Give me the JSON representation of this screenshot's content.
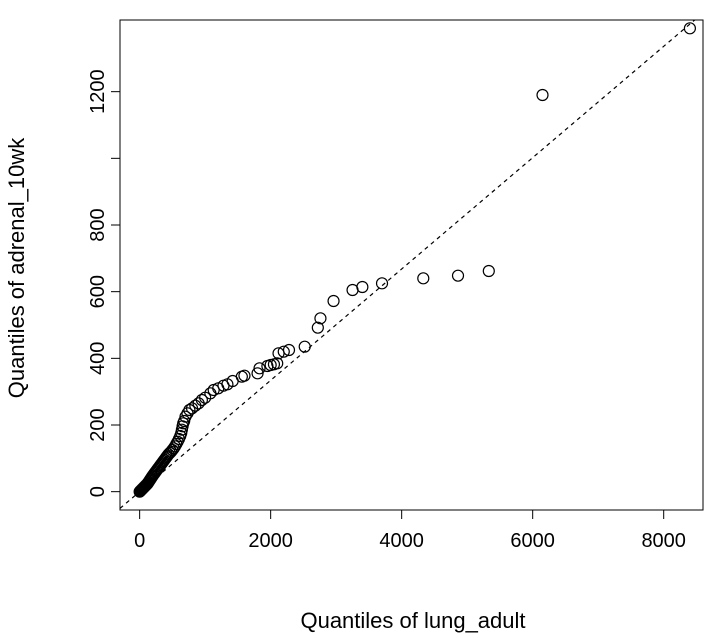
{
  "chart_data": {
    "type": "scatter",
    "xlabel": "Quantiles of lung_adult",
    "ylabel": "Quantiles of adrenal_10wk",
    "xlim": [
      -300,
      8600
    ],
    "ylim": [
      -55,
      1415
    ],
    "x_ticks": [
      0,
      2000,
      4000,
      6000,
      8000
    ],
    "x_tick_labels": [
      "0",
      "2000",
      "4000",
      "6000",
      "8000"
    ],
    "y_ticks": [
      0,
      200,
      400,
      600,
      800,
      1000,
      1200
    ],
    "y_tick_labels": [
      "0",
      "200",
      "400",
      "600",
      "800",
      "",
      "1200"
    ],
    "reference_line": {
      "style": "dashed",
      "slope": 0.167,
      "intercept": 0
    },
    "grid": false,
    "marker": "open-circle",
    "points": [
      [
        0,
        0
      ],
      [
        10,
        2
      ],
      [
        20,
        4
      ],
      [
        30,
        6
      ],
      [
        40,
        8
      ],
      [
        50,
        10
      ],
      [
        60,
        12
      ],
      [
        70,
        14
      ],
      [
        80,
        16
      ],
      [
        90,
        18
      ],
      [
        100,
        20
      ],
      [
        110,
        22
      ],
      [
        120,
        24
      ],
      [
        130,
        27
      ],
      [
        140,
        30
      ],
      [
        150,
        33
      ],
      [
        160,
        36
      ],
      [
        170,
        39
      ],
      [
        180,
        42
      ],
      [
        190,
        45
      ],
      [
        200,
        48
      ],
      [
        215,
        52
      ],
      [
        230,
        56
      ],
      [
        245,
        60
      ],
      [
        260,
        64
      ],
      [
        275,
        68
      ],
      [
        290,
        72
      ],
      [
        305,
        76
      ],
      [
        320,
        80
      ],
      [
        335,
        84
      ],
      [
        350,
        88
      ],
      [
        365,
        92
      ],
      [
        380,
        96
      ],
      [
        395,
        100
      ],
      [
        410,
        104
      ],
      [
        425,
        108
      ],
      [
        440,
        112
      ],
      [
        460,
        116
      ],
      [
        480,
        120
      ],
      [
        500,
        125
      ],
      [
        520,
        130
      ],
      [
        540,
        136
      ],
      [
        560,
        143
      ],
      [
        580,
        150
      ],
      [
        600,
        158
      ],
      [
        620,
        167
      ],
      [
        635,
        176
      ],
      [
        645,
        186
      ],
      [
        655,
        196
      ],
      [
        665,
        205
      ],
      [
        680,
        212
      ],
      [
        700,
        225
      ],
      [
        730,
        235
      ],
      [
        760,
        245
      ],
      [
        800,
        250
      ],
      [
        850,
        258
      ],
      [
        900,
        265
      ],
      [
        950,
        275
      ],
      [
        1000,
        282
      ],
      [
        1080,
        295
      ],
      [
        1130,
        305
      ],
      [
        1200,
        310
      ],
      [
        1280,
        318
      ],
      [
        1340,
        322
      ],
      [
        1420,
        332
      ],
      [
        1560,
        345
      ],
      [
        1600,
        348
      ],
      [
        1800,
        355
      ],
      [
        1830,
        370
      ],
      [
        1950,
        377
      ],
      [
        2000,
        380
      ],
      [
        2050,
        382
      ],
      [
        2100,
        385
      ],
      [
        2120,
        415
      ],
      [
        2200,
        420
      ],
      [
        2280,
        425
      ],
      [
        2520,
        435
      ],
      [
        2720,
        492
      ],
      [
        2760,
        520
      ],
      [
        2960,
        572
      ],
      [
        3250,
        605
      ],
      [
        3400,
        614
      ],
      [
        3700,
        625
      ],
      [
        4330,
        640
      ],
      [
        4860,
        648
      ],
      [
        5330,
        662
      ],
      [
        6150,
        1190
      ],
      [
        8400,
        1390
      ]
    ]
  }
}
